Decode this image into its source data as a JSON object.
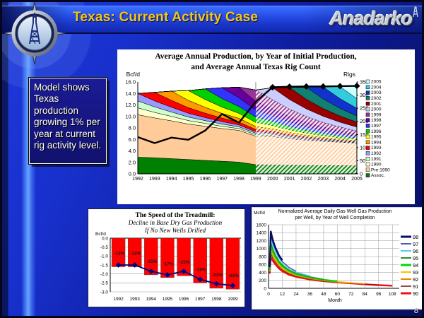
{
  "slide": {
    "header_title": "Texas: Current Activity Case",
    "brand": "Anadarko",
    "page_number": "8",
    "callout_text": "Model shows Texas production growing 1% per year at current rig activity level."
  },
  "colors": {
    "title_yellow": "#F5C518",
    "bar_red": "#FF0000",
    "navy_line": "#000080",
    "rig_line_black": "#000000"
  },
  "chart_data": [
    {
      "type": "area",
      "name": "production-by-vintage",
      "title_line1": "Average Annual Production, by Year of Initial Production,",
      "title_line2": "and Average Annual Texas Rig Count",
      "ylabel_left": "Bcf/d",
      "ylabel_right": "Rigs",
      "ylim_left": [
        0,
        16
      ],
      "ytick_left_step": 2,
      "ylim_right": [
        0,
        350
      ],
      "ytick_right_step": 50,
      "x": [
        1992,
        1993,
        1994,
        1995,
        1996,
        1997,
        1998,
        1999,
        2000,
        2001,
        2002,
        2003,
        2004,
        2005
      ],
      "forecast_start": 1999,
      "hatch_through": "1999",
      "series": [
        {
          "name": "Assoc.",
          "color": "#008000",
          "values": [
            2.9,
            2.8,
            2.65,
            2.5,
            2.35,
            2.2,
            2.05,
            1.6,
            1.55,
            1.5,
            1.48,
            1.45,
            1.43,
            1.4
          ]
        },
        {
          "name": "Pre-1990",
          "color": "#FFCC99",
          "values": [
            7.4,
            6.94,
            6.58,
            6.17,
            5.94,
            5.69,
            5.52,
            4.97,
            4.93,
            4.61,
            4.38,
            4.21,
            4.07,
            3.94
          ]
        },
        {
          "name": "1990",
          "color": "#FFFFCC",
          "values": [
            1.2,
            0.96,
            0.77,
            0.61,
            0.49,
            0.39,
            0.31,
            0.25,
            0.2,
            0.16,
            0.13,
            0.1,
            0.08,
            0.07
          ]
        },
        {
          "name": "1991",
          "color": "#CCFFCC",
          "values": [
            1.2,
            0.96,
            0.77,
            0.61,
            0.49,
            0.39,
            0.31,
            0.25,
            0.2,
            0.16,
            0.13,
            0.1,
            0.08,
            0.07
          ]
        },
        {
          "name": "1992",
          "color": "#9999FF",
          "values": [
            1.3,
            1.04,
            0.83,
            0.67,
            0.53,
            0.43,
            0.34,
            0.27,
            0.22,
            0.18,
            0.14,
            0.11,
            0.09,
            0.07
          ]
        },
        {
          "name": "1993",
          "color": "#FF0000",
          "values": [
            0,
            1.5,
            1.2,
            0.96,
            0.77,
            0.61,
            0.49,
            0.39,
            0.31,
            0.25,
            0.2,
            0.16,
            0.13,
            0.1
          ]
        },
        {
          "name": "1994",
          "color": "#FF9900",
          "values": [
            0,
            0,
            1.6,
            1.28,
            1.02,
            0.82,
            0.66,
            0.52,
            0.42,
            0.34,
            0.27,
            0.21,
            0.17,
            0.14
          ]
        },
        {
          "name": "1995",
          "color": "#FFFF00",
          "values": [
            0,
            0,
            0,
            1.7,
            1.36,
            1.09,
            0.87,
            0.7,
            0.56,
            0.45,
            0.36,
            0.29,
            0.23,
            0.18
          ]
        },
        {
          "name": "1996",
          "color": "#00D000",
          "values": [
            0,
            0,
            0,
            0,
            1.85,
            1.48,
            1.18,
            0.95,
            0.76,
            0.61,
            0.49,
            0.39,
            0.31,
            0.25
          ]
        },
        {
          "name": "1997",
          "color": "#3333FF",
          "values": [
            0,
            0,
            0,
            0,
            0,
            1.9,
            1.52,
            1.22,
            0.97,
            0.78,
            0.62,
            0.5,
            0.4,
            0.32
          ]
        },
        {
          "name": "1998",
          "color": "#660099",
          "values": [
            0,
            0,
            0,
            0,
            0,
            0,
            1.85,
            1.48,
            1.18,
            0.95,
            0.76,
            0.61,
            0.49,
            0.39
          ]
        },
        {
          "name": "1999",
          "color": "#993399",
          "values": [
            0,
            0,
            0,
            0,
            0,
            0,
            0,
            2.0,
            1.6,
            1.28,
            1.02,
            0.82,
            0.66,
            0.52
          ]
        },
        {
          "name": "2000",
          "color": "#CCCCFF",
          "values": [
            0,
            0,
            0,
            0,
            0,
            0,
            0,
            0,
            2.1,
            1.68,
            1.34,
            1.08,
            0.86,
            0.69
          ]
        },
        {
          "name": "2001",
          "color": "#990000",
          "values": [
            0,
            0,
            0,
            0,
            0,
            0,
            0,
            0,
            0,
            2.1,
            1.68,
            1.34,
            1.08,
            0.86
          ]
        },
        {
          "name": "2002",
          "color": "#108070",
          "values": [
            0,
            0,
            0,
            0,
            0,
            0,
            0,
            0,
            0,
            0,
            2.1,
            1.68,
            1.34,
            1.08
          ]
        },
        {
          "name": "2003",
          "color": "#1133CC",
          "values": [
            0,
            0,
            0,
            0,
            0,
            0,
            0,
            0,
            0,
            0,
            0,
            2.1,
            1.68,
            1.34
          ]
        },
        {
          "name": "2004",
          "color": "#33CCDD",
          "values": [
            0,
            0,
            0,
            0,
            0,
            0,
            0,
            0,
            0,
            0,
            0,
            0,
            2.1,
            1.68
          ]
        },
        {
          "name": "2005",
          "color": "#CCFFFF",
          "values": [
            0,
            0,
            0,
            0,
            0,
            0,
            0,
            0,
            0,
            0,
            0,
            0,
            0,
            2.2
          ]
        }
      ],
      "rig_line": {
        "name": "Texas Rig Count",
        "values": [
          140,
          117,
          138,
          130,
          165,
          228,
          195,
          275,
          330,
          332,
          333,
          333,
          334,
          335
        ],
        "marker_from_index": 8
      }
    },
    {
      "type": "bar",
      "name": "speed-of-treadmill",
      "title": "The Speed of the Treadmill:",
      "subtitle1": "Decline in Base Dry Gas Production",
      "subtitle2": "If No New Wells Drilled",
      "ylabel": "Bcf/d",
      "ylim": [
        -3.0,
        0.0
      ],
      "yticks": [
        0.0,
        -0.5,
        -1.0,
        -1.5,
        -2.0,
        -2.5,
        -3.0
      ],
      "categories": [
        "1992",
        "1993",
        "1994",
        "1995",
        "1996",
        "1997",
        "1998",
        "1999"
      ],
      "bars": [
        -1.6,
        -1.6,
        -2.05,
        -2.2,
        -2.1,
        -2.5,
        -2.8,
        -2.85
      ],
      "bar_labels": [
        "-13%",
        "-13%",
        "-15%",
        "-17%",
        "-15%",
        "-19%",
        "-21%",
        "-22%"
      ],
      "line": [
        -1.5,
        -1.5,
        -1.85,
        -2.05,
        -1.85,
        -2.3,
        -2.55,
        -2.65
      ]
    },
    {
      "type": "line",
      "name": "normalized-decline-curves",
      "title_line1": "Normalized Average Daily Gas Well Gas Production",
      "title_line2": "per Well, by Year of Well Completion",
      "ylabel": "Mcf/d",
      "xlabel": "Month",
      "ylim": [
        0,
        1600
      ],
      "ytick_step": 200,
      "xticks": [
        0,
        12,
        24,
        36,
        48,
        60,
        72,
        84,
        96,
        108
      ],
      "sample_months": [
        1,
        2,
        3,
        4,
        6,
        9,
        12,
        18,
        24,
        36,
        48,
        60,
        72,
        84,
        96,
        108
      ],
      "series": [
        {
          "name": "98",
          "color": "#001060",
          "width": 2.4,
          "values": [
            540,
            1430,
            1300,
            1190,
            1025,
            835,
            705
          ]
        },
        {
          "name": "97",
          "color": "#3050B0",
          "width": 1.2,
          "values": [
            520,
            1350,
            1230,
            1125,
            975,
            795,
            675,
            525,
            430
          ]
        },
        {
          "name": "96",
          "color": "#55CCEE",
          "width": 1.4,
          "values": [
            500,
            1270,
            1160,
            1060,
            920,
            755,
            640,
            500,
            410,
            310
          ]
        },
        {
          "name": "95",
          "color": "#2E8B2E",
          "width": 1.4,
          "values": [
            480,
            1150,
            1055,
            965,
            840,
            690,
            590,
            460,
            380,
            290,
            225
          ]
        },
        {
          "name": "94",
          "color": "#00D800",
          "width": 2.4,
          "values": [
            460,
            1080,
            990,
            910,
            790,
            650,
            555,
            435,
            360,
            275,
            215,
            175
          ]
        },
        {
          "name": "93",
          "color": "#F5C400",
          "width": 1.4,
          "values": [
            440,
            1000,
            920,
            845,
            735,
            610,
            520,
            410,
            340,
            260,
            205,
            170,
            140
          ]
        },
        {
          "name": "92",
          "color": "#F08000",
          "width": 1.4,
          "values": [
            420,
            930,
            860,
            790,
            690,
            570,
            490,
            385,
            320,
            245,
            195,
            160,
            135,
            110
          ]
        },
        {
          "name": "91",
          "color": "#7A2020",
          "width": 1.0,
          "values": [
            400,
            870,
            800,
            740,
            650,
            540,
            460,
            365,
            305,
            235,
            190,
            155,
            130,
            105,
            85
          ]
        },
        {
          "name": "90",
          "color": "#EE1111",
          "width": 2.4,
          "values": [
            370,
            780,
            730,
            680,
            600,
            500,
            430,
            340,
            290,
            220,
            180,
            150,
            125,
            100,
            80,
            65
          ]
        }
      ]
    }
  ]
}
